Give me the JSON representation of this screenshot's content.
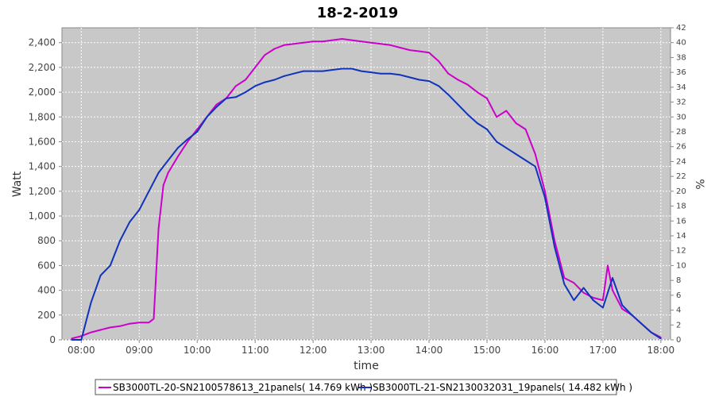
{
  "chart_data": {
    "type": "line",
    "title": "18-2-2019",
    "xlabel": "time",
    "ylabel": "Watt",
    "y2label": "%",
    "xlim": [
      "07:40",
      "18:10"
    ],
    "ylim": [
      0,
      2520
    ],
    "y2lim": [
      0,
      42
    ],
    "x_ticks": [
      "08:00",
      "09:00",
      "10:00",
      "11:00",
      "12:00",
      "13:00",
      "14:00",
      "15:00",
      "16:00",
      "17:00",
      "18:00"
    ],
    "y_ticks": [
      "0",
      "200",
      "400",
      "600",
      "800",
      "1,000",
      "1,200",
      "1,400",
      "1,600",
      "1,800",
      "2,000",
      "2,200",
      "2,400"
    ],
    "y2_ticks": [
      "0",
      "2",
      "4",
      "6",
      "8",
      "10",
      "12",
      "14",
      "16",
      "18",
      "20",
      "22",
      "24",
      "26",
      "28",
      "30",
      "32",
      "34",
      "36",
      "38",
      "40",
      "42"
    ],
    "grid": true,
    "background": "#c8c8c8",
    "legend_position": "bottom",
    "series": [
      {
        "name": "SB3000TL-20-SN2100578613_21panels( 14.769 kWh )",
        "color": "#cc00cc",
        "x": [
          "07:50",
          "08:00",
          "08:10",
          "08:20",
          "08:30",
          "08:40",
          "08:50",
          "09:00",
          "09:10",
          "09:15",
          "09:20",
          "09:25",
          "09:30",
          "09:40",
          "09:50",
          "10:00",
          "10:10",
          "10:20",
          "10:30",
          "10:40",
          "10:50",
          "11:00",
          "11:10",
          "11:20",
          "11:30",
          "11:40",
          "11:50",
          "12:00",
          "12:10",
          "12:20",
          "12:30",
          "12:40",
          "12:50",
          "13:00",
          "13:10",
          "13:20",
          "13:30",
          "13:40",
          "13:50",
          "14:00",
          "14:10",
          "14:20",
          "14:30",
          "14:40",
          "14:50",
          "15:00",
          "15:10",
          "15:20",
          "15:30",
          "15:40",
          "15:50",
          "16:00",
          "16:10",
          "16:20",
          "16:30",
          "16:40",
          "16:50",
          "17:00",
          "17:05",
          "17:10",
          "17:20",
          "17:30",
          "17:40",
          "17:50",
          "18:00"
        ],
        "y": [
          10,
          30,
          60,
          80,
          100,
          110,
          130,
          140,
          140,
          170,
          900,
          1250,
          1350,
          1480,
          1600,
          1700,
          1800,
          1900,
          1950,
          2050,
          2100,
          2200,
          2300,
          2350,
          2380,
          2390,
          2400,
          2410,
          2410,
          2420,
          2430,
          2420,
          2410,
          2400,
          2390,
          2380,
          2360,
          2340,
          2330,
          2320,
          2250,
          2150,
          2100,
          2060,
          2000,
          1950,
          1800,
          1850,
          1750,
          1700,
          1500,
          1200,
          800,
          500,
          460,
          380,
          340,
          320,
          600,
          400,
          250,
          200,
          130,
          60,
          20
        ]
      },
      {
        "name": "SB3000TL-21-SN2130032031_19panels( 14.482 kWh )",
        "color": "#1133bb",
        "x": [
          "07:50",
          "08:00",
          "08:05",
          "08:10",
          "08:20",
          "08:30",
          "08:40",
          "08:50",
          "09:00",
          "09:10",
          "09:20",
          "09:30",
          "09:40",
          "09:50",
          "10:00",
          "10:10",
          "10:20",
          "10:30",
          "10:40",
          "10:50",
          "11:00",
          "11:10",
          "11:20",
          "11:30",
          "11:40",
          "11:50",
          "12:00",
          "12:10",
          "12:20",
          "12:30",
          "12:40",
          "12:50",
          "13:00",
          "13:10",
          "13:20",
          "13:30",
          "13:40",
          "13:50",
          "14:00",
          "14:10",
          "14:20",
          "14:30",
          "14:40",
          "14:50",
          "15:00",
          "15:10",
          "15:20",
          "15:30",
          "15:40",
          "15:50",
          "16:00",
          "16:10",
          "16:20",
          "16:30",
          "16:40",
          "16:50",
          "17:00",
          "17:05",
          "17:10",
          "17:20",
          "17:30",
          "17:40",
          "17:50",
          "18:00"
        ],
        "y": [
          0,
          0,
          150,
          300,
          520,
          600,
          800,
          950,
          1050,
          1200,
          1350,
          1450,
          1550,
          1620,
          1680,
          1800,
          1880,
          1950,
          1960,
          2000,
          2050,
          2080,
          2100,
          2130,
          2150,
          2170,
          2170,
          2170,
          2180,
          2190,
          2190,
          2170,
          2160,
          2150,
          2150,
          2140,
          2120,
          2100,
          2090,
          2050,
          1980,
          1900,
          1820,
          1750,
          1700,
          1600,
          1550,
          1500,
          1450,
          1400,
          1150,
          750,
          450,
          320,
          420,
          320,
          260,
          380,
          500,
          280,
          200,
          130,
          60,
          10
        ]
      }
    ]
  }
}
